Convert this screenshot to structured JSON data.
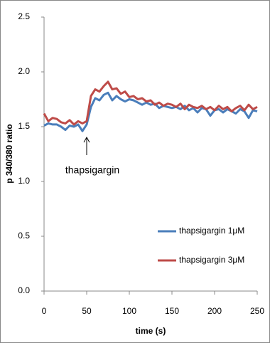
{
  "chart_data": {
    "type": "line",
    "x_label": "time (s)",
    "y_label": "p 340/380 ratio",
    "annotation": "thapsigargin",
    "x": [
      0,
      5,
      10,
      15,
      20,
      25,
      30,
      35,
      40,
      45,
      50,
      55,
      60,
      65,
      70,
      75,
      80,
      85,
      90,
      95,
      100,
      105,
      110,
      115,
      120,
      125,
      130,
      135,
      140,
      145,
      150,
      155,
      160,
      165,
      170,
      175,
      180,
      185,
      190,
      195,
      200,
      205,
      210,
      215,
      220,
      225,
      230,
      235,
      240,
      245,
      250
    ],
    "series": [
      {
        "name": "thapsigargin 1μM",
        "color": "#4a7ebb",
        "values": [
          1.51,
          1.53,
          1.52,
          1.52,
          1.5,
          1.47,
          1.51,
          1.5,
          1.52,
          1.46,
          1.52,
          1.68,
          1.76,
          1.74,
          1.79,
          1.81,
          1.74,
          1.78,
          1.75,
          1.73,
          1.75,
          1.74,
          1.72,
          1.7,
          1.72,
          1.7,
          1.71,
          1.67,
          1.69,
          1.68,
          1.67,
          1.68,
          1.66,
          1.69,
          1.65,
          1.67,
          1.63,
          1.67,
          1.66,
          1.6,
          1.65,
          1.66,
          1.63,
          1.66,
          1.64,
          1.62,
          1.66,
          1.64,
          1.58,
          1.65,
          1.64
        ]
      },
      {
        "name": "thapsigargin 3μM",
        "color": "#be4b48",
        "values": [
          1.62,
          1.55,
          1.58,
          1.57,
          1.54,
          1.53,
          1.56,
          1.52,
          1.55,
          1.53,
          1.55,
          1.78,
          1.84,
          1.82,
          1.87,
          1.91,
          1.84,
          1.85,
          1.8,
          1.82,
          1.77,
          1.78,
          1.75,
          1.76,
          1.73,
          1.74,
          1.7,
          1.72,
          1.69,
          1.71,
          1.7,
          1.68,
          1.71,
          1.66,
          1.7,
          1.68,
          1.67,
          1.69,
          1.66,
          1.68,
          1.65,
          1.69,
          1.66,
          1.68,
          1.64,
          1.67,
          1.69,
          1.65,
          1.7,
          1.66,
          1.68
        ]
      }
    ],
    "xlim": [
      0,
      250
    ],
    "xticks": [
      0,
      50,
      100,
      150,
      200,
      250
    ],
    "ylim": [
      0,
      2.5
    ],
    "yticks": [
      {
        "value": 0,
        "label": "0.0"
      },
      0.5,
      {
        "value": 1,
        "label": "1.0"
      },
      1.5,
      {
        "value": 2,
        "label": "2.0"
      },
      2.5
    ],
    "legend": "lower right"
  }
}
